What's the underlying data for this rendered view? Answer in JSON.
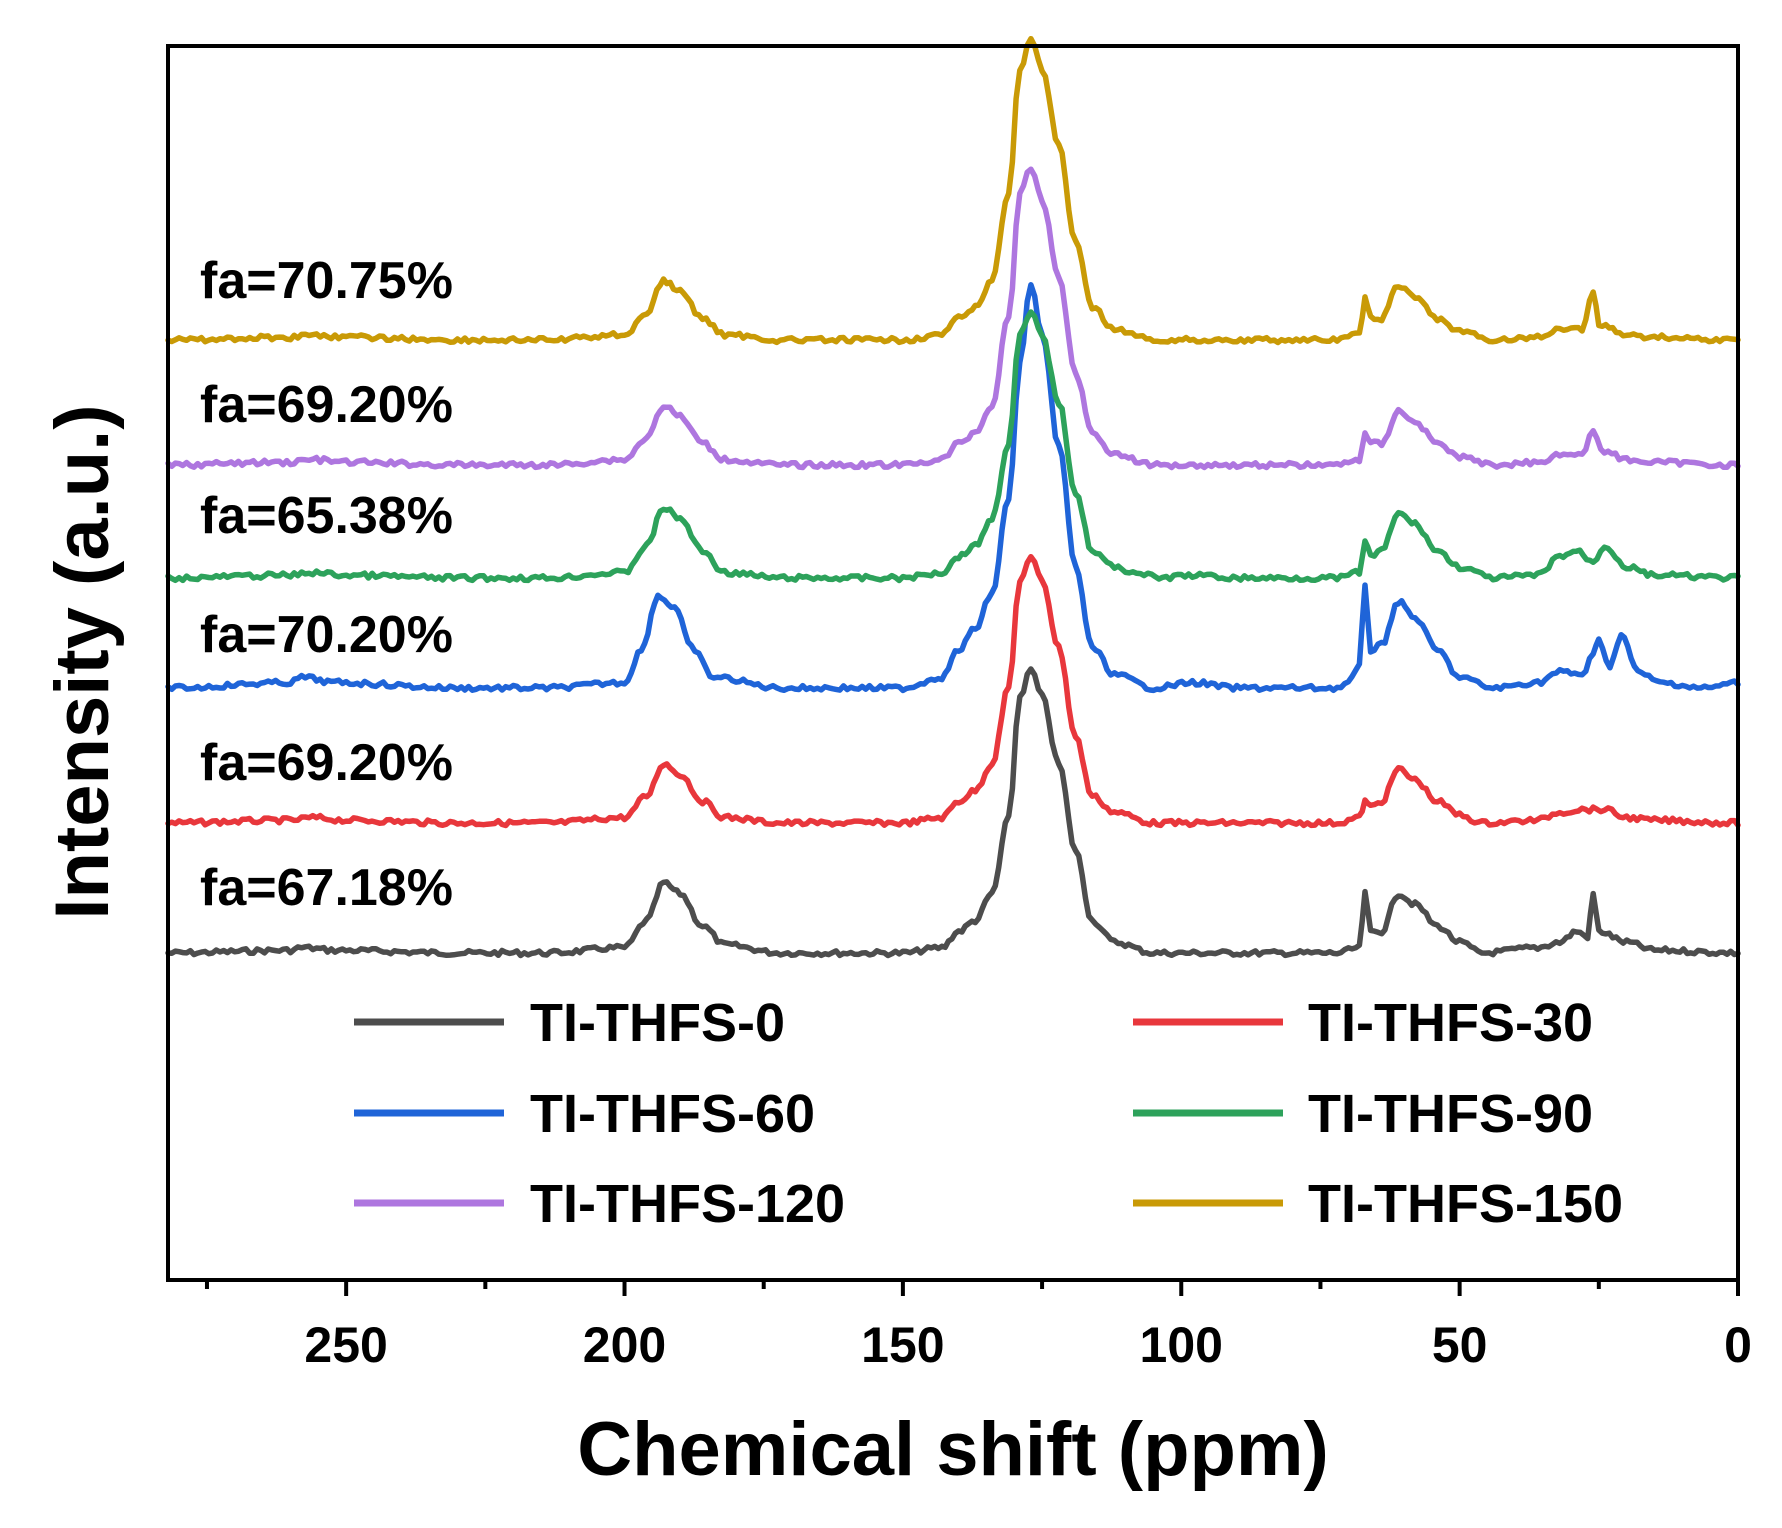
{
  "chart_data": {
    "type": "line",
    "title": "",
    "xlabel": "Chemical shift (ppm)",
    "ylabel": "Intensity (a.u.)",
    "xlim": [
      282,
      0
    ],
    "x_reversed": true,
    "x_ticks": [
      250,
      200,
      150,
      100,
      50,
      0
    ],
    "x_minor_step": 25,
    "y_ticks_shown": false,
    "grid": false,
    "legend": {
      "position": "bottom",
      "columns": 2
    },
    "series": [
      {
        "name": "TI-THFS-0",
        "color": "#4d4d4d",
        "label": "fa=67.18%",
        "points": [
          [
            282,
            0
          ],
          [
            260,
            0.01
          ],
          [
            258,
            0.02
          ],
          [
            252,
            0.01
          ],
          [
            230,
            0
          ],
          [
            214,
            0
          ],
          [
            200,
            0.02
          ],
          [
            196,
            0.12
          ],
          [
            193,
            0.26
          ],
          [
            190,
            0.22
          ],
          [
            186,
            0.1
          ],
          [
            182,
            0.03
          ],
          [
            172,
            0
          ],
          [
            150,
            0
          ],
          [
            143,
            0.02
          ],
          [
            140,
            0.08
          ],
          [
            137,
            0.12
          ],
          [
            134,
            0.22
          ],
          [
            131,
            0.5
          ],
          [
            129,
            0.95
          ],
          [
            127,
            1.05
          ],
          [
            125,
            0.95
          ],
          [
            122,
            0.7
          ],
          [
            119,
            0.38
          ],
          [
            116,
            0.12
          ],
          [
            112,
            0.04
          ],
          [
            105,
            0
          ],
          [
            90,
            0
          ],
          [
            72,
            0
          ],
          [
            68,
            0.02
          ],
          [
            67,
            0.22
          ],
          [
            66,
            0.08
          ],
          [
            64,
            0.08
          ],
          [
            61,
            0.22
          ],
          [
            58,
            0.18
          ],
          [
            54,
            0.1
          ],
          [
            50,
            0.04
          ],
          [
            46,
            0
          ],
          [
            36,
            0.02
          ],
          [
            32,
            0.04
          ],
          [
            29,
            0.08
          ],
          [
            27,
            0.06
          ],
          [
            26,
            0.22
          ],
          [
            25,
            0.08
          ],
          [
            20,
            0.04
          ],
          [
            15,
            0.01
          ],
          [
            0,
            0
          ]
        ],
        "baseline_intensity": 0,
        "label_position": "left"
      },
      {
        "name": "TI-THFS-30",
        "color": "#e8373c",
        "label": "fa=69.20%",
        "points": [
          [
            282,
            0
          ],
          [
            260,
            0.01
          ],
          [
            256,
            0.02
          ],
          [
            250,
            0.01
          ],
          [
            230,
            0
          ],
          [
            214,
            0
          ],
          [
            200,
            0.02
          ],
          [
            196,
            0.1
          ],
          [
            193,
            0.22
          ],
          [
            190,
            0.18
          ],
          [
            186,
            0.08
          ],
          [
            182,
            0.02
          ],
          [
            172,
            0
          ],
          [
            150,
            0
          ],
          [
            143,
            0.02
          ],
          [
            140,
            0.08
          ],
          [
            137,
            0.12
          ],
          [
            134,
            0.22
          ],
          [
            131,
            0.5
          ],
          [
            129,
            0.9
          ],
          [
            127,
            0.98
          ],
          [
            125,
            0.9
          ],
          [
            122,
            0.65
          ],
          [
            119,
            0.32
          ],
          [
            116,
            0.1
          ],
          [
            112,
            0.04
          ],
          [
            105,
            0
          ],
          [
            90,
            0
          ],
          [
            72,
            0
          ],
          [
            68,
            0.02
          ],
          [
            67,
            0.08
          ],
          [
            66,
            0.06
          ],
          [
            64,
            0.08
          ],
          [
            61,
            0.2
          ],
          [
            58,
            0.16
          ],
          [
            54,
            0.08
          ],
          [
            50,
            0.03
          ],
          [
            46,
            0
          ],
          [
            36,
            0.01
          ],
          [
            32,
            0.04
          ],
          [
            28,
            0.05
          ],
          [
            24,
            0.05
          ],
          [
            20,
            0.02
          ],
          [
            15,
            0.01
          ],
          [
            0,
            0
          ]
        ],
        "label_position": "left"
      },
      {
        "name": "TI-THFS-60",
        "color": "#1f64d8",
        "label": "fa=70.20%",
        "points": [
          [
            282,
            0
          ],
          [
            260,
            0.02
          ],
          [
            258,
            0.04
          ],
          [
            252,
            0.02
          ],
          [
            230,
            0
          ],
          [
            214,
            0
          ],
          [
            200,
            0.02
          ],
          [
            197,
            0.14
          ],
          [
            194,
            0.34
          ],
          [
            191,
            0.3
          ],
          [
            188,
            0.15
          ],
          [
            184,
            0.04
          ],
          [
            172,
            0
          ],
          [
            150,
            0
          ],
          [
            143,
            0.04
          ],
          [
            140,
            0.14
          ],
          [
            137,
            0.22
          ],
          [
            134,
            0.35
          ],
          [
            131,
            0.7
          ],
          [
            129,
            1.2
          ],
          [
            127,
            1.5
          ],
          [
            125,
            1.3
          ],
          [
            122,
            0.9
          ],
          [
            119,
            0.45
          ],
          [
            116,
            0.15
          ],
          [
            112,
            0.05
          ],
          [
            105,
            0
          ],
          [
            98,
            0.02
          ],
          [
            90,
            0
          ],
          [
            72,
            0
          ],
          [
            70,
            0.02
          ],
          [
            68,
            0.08
          ],
          [
            67,
            0.38
          ],
          [
            66,
            0.14
          ],
          [
            64,
            0.16
          ],
          [
            61,
            0.32
          ],
          [
            58,
            0.26
          ],
          [
            54,
            0.14
          ],
          [
            50,
            0.04
          ],
          [
            44,
            0
          ],
          [
            36,
            0.02
          ],
          [
            32,
            0.06
          ],
          [
            28,
            0.05
          ],
          [
            26,
            0.12
          ],
          [
            25,
            0.18
          ],
          [
            23,
            0.08
          ],
          [
            21,
            0.2
          ],
          [
            18,
            0.06
          ],
          [
            14,
            0.02
          ],
          [
            6,
            0
          ],
          [
            0,
            0.02
          ]
        ],
        "label_position": "left"
      },
      {
        "name": "TI-THFS-90",
        "color": "#2da25b",
        "label": "fa=65.38%",
        "points": [
          [
            282,
            0
          ],
          [
            260,
            0.01
          ],
          [
            256,
            0.02
          ],
          [
            250,
            0.01
          ],
          [
            230,
            0
          ],
          [
            214,
            0
          ],
          [
            200,
            0.02
          ],
          [
            196,
            0.12
          ],
          [
            193,
            0.26
          ],
          [
            190,
            0.22
          ],
          [
            186,
            0.1
          ],
          [
            182,
            0.02
          ],
          [
            172,
            0
          ],
          [
            150,
            0
          ],
          [
            143,
            0.02
          ],
          [
            140,
            0.08
          ],
          [
            137,
            0.12
          ],
          [
            134,
            0.22
          ],
          [
            131,
            0.5
          ],
          [
            129,
            0.9
          ],
          [
            127,
            0.98
          ],
          [
            125,
            0.9
          ],
          [
            122,
            0.65
          ],
          [
            119,
            0.32
          ],
          [
            116,
            0.1
          ],
          [
            112,
            0.04
          ],
          [
            108,
            0.02
          ],
          [
            104,
            0
          ],
          [
            98,
            0.01
          ],
          [
            90,
            0
          ],
          [
            72,
            0
          ],
          [
            68,
            0.02
          ],
          [
            67,
            0.14
          ],
          [
            66,
            0.08
          ],
          [
            64,
            0.1
          ],
          [
            61,
            0.24
          ],
          [
            58,
            0.2
          ],
          [
            54,
            0.1
          ],
          [
            50,
            0.04
          ],
          [
            44,
            0
          ],
          [
            36,
            0.01
          ],
          [
            32,
            0.08
          ],
          [
            29,
            0.1
          ],
          [
            26,
            0.06
          ],
          [
            24,
            0.12
          ],
          [
            20,
            0.04
          ],
          [
            15,
            0.01
          ],
          [
            0,
            0
          ]
        ],
        "label_position": "left"
      },
      {
        "name": "TI-THFS-120",
        "color": "#ae76df",
        "label": "fa=69.20%",
        "points": [
          [
            282,
            0
          ],
          [
            260,
            0.01
          ],
          [
            256,
            0.02
          ],
          [
            250,
            0.01
          ],
          [
            230,
            0
          ],
          [
            214,
            0
          ],
          [
            200,
            0.02
          ],
          [
            196,
            0.1
          ],
          [
            193,
            0.22
          ],
          [
            190,
            0.18
          ],
          [
            186,
            0.08
          ],
          [
            182,
            0.02
          ],
          [
            172,
            0
          ],
          [
            150,
            0
          ],
          [
            143,
            0.02
          ],
          [
            140,
            0.08
          ],
          [
            137,
            0.12
          ],
          [
            134,
            0.22
          ],
          [
            131,
            0.55
          ],
          [
            129,
            1.0
          ],
          [
            127,
            1.1
          ],
          [
            125,
            0.98
          ],
          [
            122,
            0.7
          ],
          [
            119,
            0.34
          ],
          [
            116,
            0.12
          ],
          [
            112,
            0.04
          ],
          [
            105,
            0
          ],
          [
            90,
            0
          ],
          [
            72,
            0
          ],
          [
            68,
            0.02
          ],
          [
            67,
            0.12
          ],
          [
            66,
            0.08
          ],
          [
            64,
            0.08
          ],
          [
            61,
            0.2
          ],
          [
            58,
            0.16
          ],
          [
            54,
            0.08
          ],
          [
            50,
            0.03
          ],
          [
            44,
            0
          ],
          [
            36,
            0.01
          ],
          [
            32,
            0.04
          ],
          [
            28,
            0.04
          ],
          [
            26,
            0.12
          ],
          [
            24,
            0.05
          ],
          [
            20,
            0.02
          ],
          [
            15,
            0.01
          ],
          [
            0,
            0
          ]
        ],
        "label_position": "left"
      },
      {
        "name": "TI-THFS-150",
        "color": "#c99a06",
        "label": "fa=70.75%",
        "points": [
          [
            282,
            0
          ],
          [
            260,
            0.01
          ],
          [
            256,
            0.02
          ],
          [
            250,
            0.01
          ],
          [
            230,
            0
          ],
          [
            214,
            0
          ],
          [
            200,
            0.02
          ],
          [
            196,
            0.1
          ],
          [
            193,
            0.22
          ],
          [
            190,
            0.18
          ],
          [
            186,
            0.08
          ],
          [
            182,
            0.02
          ],
          [
            172,
            0
          ],
          [
            150,
            0
          ],
          [
            143,
            0.02
          ],
          [
            140,
            0.08
          ],
          [
            137,
            0.12
          ],
          [
            134,
            0.22
          ],
          [
            131,
            0.55
          ],
          [
            129,
            1.0
          ],
          [
            127,
            1.12
          ],
          [
            125,
            1.0
          ],
          [
            122,
            0.72
          ],
          [
            119,
            0.36
          ],
          [
            116,
            0.12
          ],
          [
            112,
            0.04
          ],
          [
            105,
            0
          ],
          [
            90,
            0
          ],
          [
            72,
            0
          ],
          [
            68,
            0.02
          ],
          [
            67,
            0.16
          ],
          [
            66,
            0.08
          ],
          [
            64,
            0.08
          ],
          [
            61,
            0.2
          ],
          [
            58,
            0.16
          ],
          [
            54,
            0.08
          ],
          [
            50,
            0.03
          ],
          [
            44,
            0
          ],
          [
            36,
            0.01
          ],
          [
            32,
            0.04
          ],
          [
            28,
            0.04
          ],
          [
            26,
            0.18
          ],
          [
            25,
            0.06
          ],
          [
            20,
            0.02
          ],
          [
            15,
            0.01
          ],
          [
            0,
            0
          ]
        ],
        "label_position": "left"
      }
    ]
  }
}
